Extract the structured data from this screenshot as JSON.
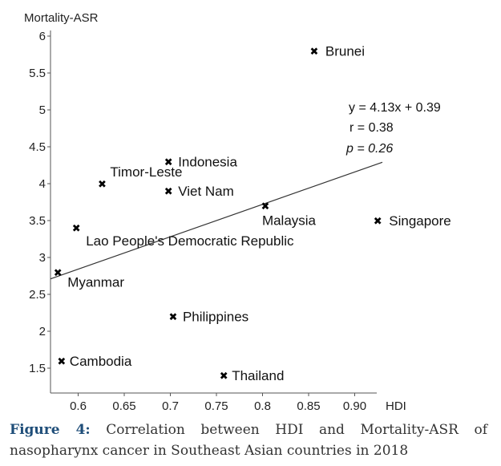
{
  "chart_data": {
    "type": "scatter",
    "xlabel": "HDI",
    "ylabel": "Mortality-ASR",
    "xlim": [
      0.57,
      0.93
    ],
    "ylim": [
      1.2,
      6.0
    ],
    "x_ticks": [
      "0.6",
      "0.65",
      "0.7",
      "0.75",
      "0.8",
      "0.85",
      "0.90"
    ],
    "x_tick_values": [
      0.6,
      0.65,
      0.7,
      0.75,
      0.8,
      0.85,
      0.9
    ],
    "y_ticks": [
      "1.5",
      "2",
      "2.5",
      "3",
      "3.5",
      "4",
      "4.5",
      "5",
      "5.5",
      "6"
    ],
    "y_tick_values": [
      1.5,
      2,
      2.5,
      3,
      3.5,
      4,
      4.5,
      5,
      5.5,
      6
    ],
    "points": [
      {
        "label": "Brunei",
        "x": 0.856,
        "y": 5.8
      },
      {
        "label": "Indonesia",
        "x": 0.698,
        "y": 4.3
      },
      {
        "label": "Timor-Leste",
        "x": 0.626,
        "y": 4.0
      },
      {
        "label": "Viet Nam",
        "x": 0.698,
        "y": 3.9
      },
      {
        "label": "Malaysia",
        "x": 0.803,
        "y": 3.7
      },
      {
        "label": "Singapore",
        "x": 0.925,
        "y": 3.5
      },
      {
        "label": "Lao People's Democratic Republic",
        "x": 0.598,
        "y": 3.4
      },
      {
        "label": "Myanmar",
        "x": 0.578,
        "y": 2.8
      },
      {
        "label": "Philippines",
        "x": 0.703,
        "y": 2.2
      },
      {
        "label": "Cambodia",
        "x": 0.582,
        "y": 1.6
      },
      {
        "label": "Thailand",
        "x": 0.758,
        "y": 1.4
      }
    ],
    "trendline": {
      "x": [
        0.57,
        0.93
      ],
      "y": [
        2.71,
        4.29
      ]
    },
    "annotations": [
      "y = 4.13x + 0.39",
      "r = 0.38",
      "p = 0.26"
    ],
    "grid": false
  },
  "caption": {
    "figure_label": "Figure 4:",
    "text": "Correlation between HDI and Mortality-ASR of nasopharynx cancer in Southeast Asian countries in 2018"
  }
}
